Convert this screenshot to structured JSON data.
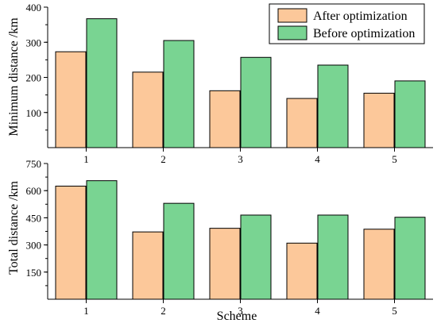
{
  "chart_data": [
    {
      "type": "bar",
      "categories": [
        "1",
        "2",
        "3",
        "4",
        "5"
      ],
      "series": [
        {
          "name": "After optimization",
          "values": [
            273,
            215,
            162,
            140,
            155
          ]
        },
        {
          "name": "Before optimization",
          "values": [
            367,
            305,
            257,
            235,
            190
          ]
        }
      ],
      "ylabel": "Minimum distance /km",
      "ylim": [
        0,
        400
      ],
      "yticks": [
        100,
        200,
        300,
        400
      ],
      "legend": "top-right",
      "grid": false
    },
    {
      "type": "bar",
      "categories": [
        "1",
        "2",
        "3",
        "4",
        "5"
      ],
      "series": [
        {
          "name": "After optimization",
          "values": [
            625,
            372,
            392,
            310,
            387
          ]
        },
        {
          "name": "Before optimization",
          "values": [
            655,
            530,
            465,
            465,
            453
          ]
        }
      ],
      "xlabel": "Scheme",
      "ylabel": "Total distance /km",
      "ylim": [
        0,
        750
      ],
      "yticks": [
        150,
        300,
        450,
        600,
        750
      ],
      "grid": false
    }
  ],
  "colors": {
    "after": "#fcc89a",
    "before": "#79d492",
    "stroke": "#000000"
  }
}
